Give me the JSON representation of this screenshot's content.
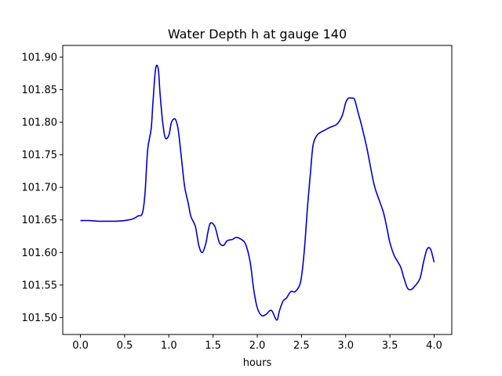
{
  "chart_data": {
    "type": "line",
    "title": "Water Depth h at gauge 140",
    "xlabel": "hours",
    "ylabel": "",
    "xlim": [
      -0.2,
      4.2
    ],
    "ylim": [
      101.474,
      101.918
    ],
    "grid": false,
    "legend": "none",
    "xticks": [
      0.0,
      0.5,
      1.0,
      1.5,
      2.0,
      2.5,
      3.0,
      3.5,
      4.0
    ],
    "xtick_labels": [
      "0.0",
      "0.5",
      "1.0",
      "1.5",
      "2.0",
      "2.5",
      "3.0",
      "3.5",
      "4.0"
    ],
    "yticks": [
      101.5,
      101.55,
      101.6,
      101.65,
      101.7,
      101.75,
      101.8,
      101.85,
      101.9
    ],
    "ytick_labels": [
      "101.50",
      "101.55",
      "101.60",
      "101.65",
      "101.70",
      "101.75",
      "101.80",
      "101.85",
      "101.90"
    ],
    "series": [
      {
        "name": "",
        "color": "#0000cc",
        "x": [
          0.0,
          0.1,
          0.2,
          0.3,
          0.4,
          0.5,
          0.6,
          0.65,
          0.7,
          0.73,
          0.76,
          0.8,
          0.82,
          0.85,
          0.88,
          0.9,
          0.93,
          0.96,
          1.0,
          1.03,
          1.07,
          1.1,
          1.12,
          1.15,
          1.18,
          1.22,
          1.25,
          1.3,
          1.34,
          1.38,
          1.42,
          1.44,
          1.47,
          1.52,
          1.56,
          1.58,
          1.62,
          1.66,
          1.72,
          1.76,
          1.82,
          1.87,
          1.92,
          1.96,
          2.0,
          2.05,
          2.1,
          2.16,
          2.22,
          2.25,
          2.29,
          2.33,
          2.38,
          2.43,
          2.49,
          2.53,
          2.57,
          2.6,
          2.63,
          2.67,
          2.71,
          2.75,
          2.82,
          2.9,
          2.96,
          3.0,
          3.03,
          3.07,
          3.1,
          3.14,
          3.18,
          3.24,
          3.32,
          3.38,
          3.43,
          3.47,
          3.5,
          3.55,
          3.62,
          3.66,
          3.7,
          3.74,
          3.78,
          3.84,
          3.88,
          3.92,
          3.96,
          4.0
        ],
        "y": [
          101.649,
          101.649,
          101.648,
          101.648,
          101.648,
          101.649,
          101.652,
          101.656,
          101.66,
          101.69,
          101.757,
          101.79,
          101.83,
          101.882,
          101.882,
          101.845,
          101.8,
          101.776,
          101.78,
          101.8,
          101.805,
          101.793,
          101.773,
          101.735,
          101.7,
          101.675,
          101.655,
          101.64,
          101.61,
          101.6,
          101.615,
          101.63,
          101.645,
          101.64,
          101.62,
          101.613,
          101.611,
          101.618,
          101.62,
          101.623,
          101.62,
          101.612,
          101.585,
          101.543,
          101.515,
          101.503,
          101.505,
          101.511,
          101.496,
          101.51,
          101.525,
          101.53,
          101.54,
          101.54,
          101.555,
          101.6,
          101.673,
          101.72,
          101.764,
          101.779,
          101.784,
          101.787,
          101.792,
          101.797,
          101.81,
          101.83,
          101.837,
          101.837,
          101.835,
          101.815,
          101.795,
          101.76,
          101.705,
          101.68,
          101.66,
          101.635,
          101.615,
          101.595,
          101.578,
          101.56,
          101.545,
          101.543,
          101.548,
          101.56,
          101.585,
          101.605,
          101.605,
          101.585
        ]
      }
    ]
  }
}
